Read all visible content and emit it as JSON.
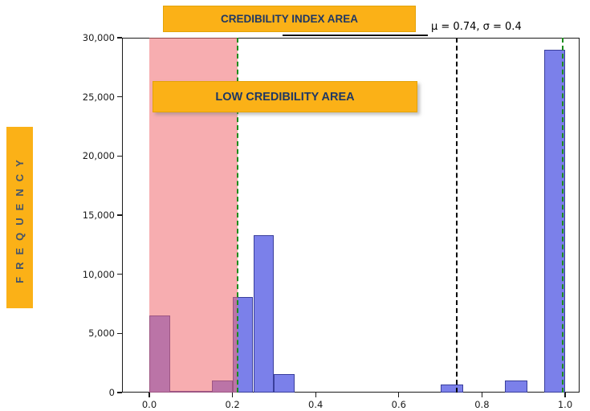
{
  "frequency_label": "FREQUENCY",
  "banners": {
    "credibility_index": "CREDIBILITY INDEX AREA",
    "low_credibility": "LOW CREDIBILITY AREA"
  },
  "annotation": "μ = 0.74, σ = 0.4",
  "colors": {
    "banner_bg": "#FBB117",
    "banner_text": "#1F3864",
    "frequency_text": "#44546A",
    "bar_fill": "#7B80EA",
    "bar_edge": "#3A3F9C",
    "shade_fill": "#F0696F",
    "green_line": "#1C8C1C",
    "black_line": "#000000",
    "axis": "#1A1A1A"
  },
  "chart_data": {
    "type": "bar",
    "title": "",
    "xlabel": "",
    "ylabel": "FREQUENCY",
    "grid": false,
    "legend_position": "none",
    "xlim": [
      -0.065,
      1.035
    ],
    "ylim": [
      0,
      30000
    ],
    "x_ticks": [
      {
        "value": 0.0,
        "label": "0.0"
      },
      {
        "value": 0.2,
        "label": "0.2"
      },
      {
        "value": 0.4,
        "label": "0.4"
      },
      {
        "value": 0.6,
        "label": "0.6"
      },
      {
        "value": 0.8,
        "label": "0.8"
      },
      {
        "value": 1.0,
        "label": "1.0"
      }
    ],
    "y_ticks": [
      {
        "value": 0,
        "label": "0"
      },
      {
        "value": 5000,
        "label": "5,000"
      },
      {
        "value": 10000,
        "label": "10,000"
      },
      {
        "value": 15000,
        "label": "15,000"
      },
      {
        "value": 20000,
        "label": "20,000"
      },
      {
        "value": 25000,
        "label": "25,000"
      },
      {
        "value": 30000,
        "label": "30,000"
      }
    ],
    "bars": [
      {
        "x0": 0.0,
        "x1": 0.05,
        "value": 6500
      },
      {
        "x0": 0.05,
        "x1": 0.1,
        "value": 130
      },
      {
        "x0": 0.1,
        "x1": 0.15,
        "value": 130
      },
      {
        "x0": 0.15,
        "x1": 0.2,
        "value": 1000
      },
      {
        "x0": 0.2,
        "x1": 0.25,
        "value": 8100
      },
      {
        "x0": 0.25,
        "x1": 0.3,
        "value": 13300
      },
      {
        "x0": 0.3,
        "x1": 0.35,
        "value": 1550
      },
      {
        "x0": 0.7,
        "x1": 0.755,
        "value": 650
      },
      {
        "x0": 0.855,
        "x1": 0.91,
        "value": 1000
      },
      {
        "x0": 0.95,
        "x1": 1.0,
        "value": 29000
      }
    ],
    "shaded_region": {
      "x0": 0.0,
      "x1": 0.213,
      "label": "LOW CREDIBILITY AREA"
    },
    "vlines": [
      {
        "x": 0.213,
        "color_key": "green_line",
        "style": "dashed",
        "name": "low-credibility-threshold-line"
      },
      {
        "x": 0.74,
        "color_key": "black_line",
        "style": "dashed",
        "name": "mean-line"
      },
      {
        "x": 0.995,
        "color_key": "green_line",
        "style": "dashed",
        "name": "high-credibility-line"
      }
    ],
    "stats": {
      "mu": 0.74,
      "sigma": 0.4
    }
  }
}
